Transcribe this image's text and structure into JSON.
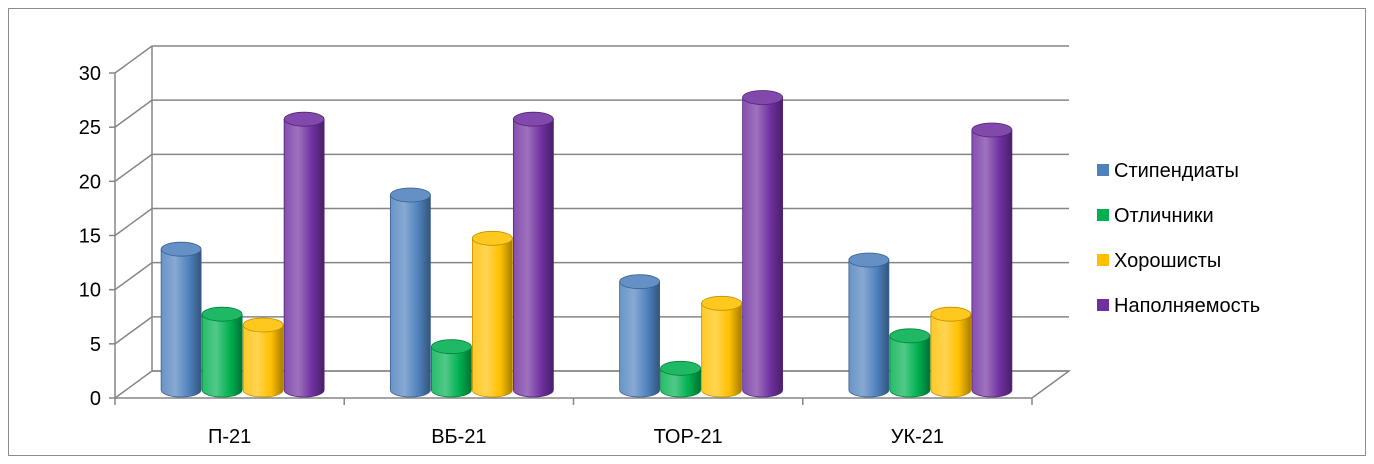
{
  "chart_data": {
    "type": "bar",
    "title": "",
    "xlabel": "",
    "ylabel": "",
    "categories": [
      "П-21",
      "ВБ-21",
      "ТОР-21",
      "УК-21"
    ],
    "series": [
      {
        "name": "Стипендиаты",
        "values": [
          13,
          18,
          10,
          12
        ],
        "color": "#4f81bd"
      },
      {
        "name": "Отличники",
        "values": [
          7,
          4,
          2,
          5
        ],
        "color": "#00b050"
      },
      {
        "name": "Хорошисты",
        "values": [
          6,
          14,
          8,
          7
        ],
        "color": "#ffc000"
      },
      {
        "name": "Наполняемость",
        "values": [
          25,
          25,
          27,
          24
        ],
        "color": "#7030a0"
      }
    ],
    "ylim": [
      0,
      30
    ],
    "yticks": [
      0,
      5,
      10,
      15,
      20,
      25,
      30
    ],
    "grid": true,
    "legend": "right",
    "style": "3d-cylinder"
  }
}
